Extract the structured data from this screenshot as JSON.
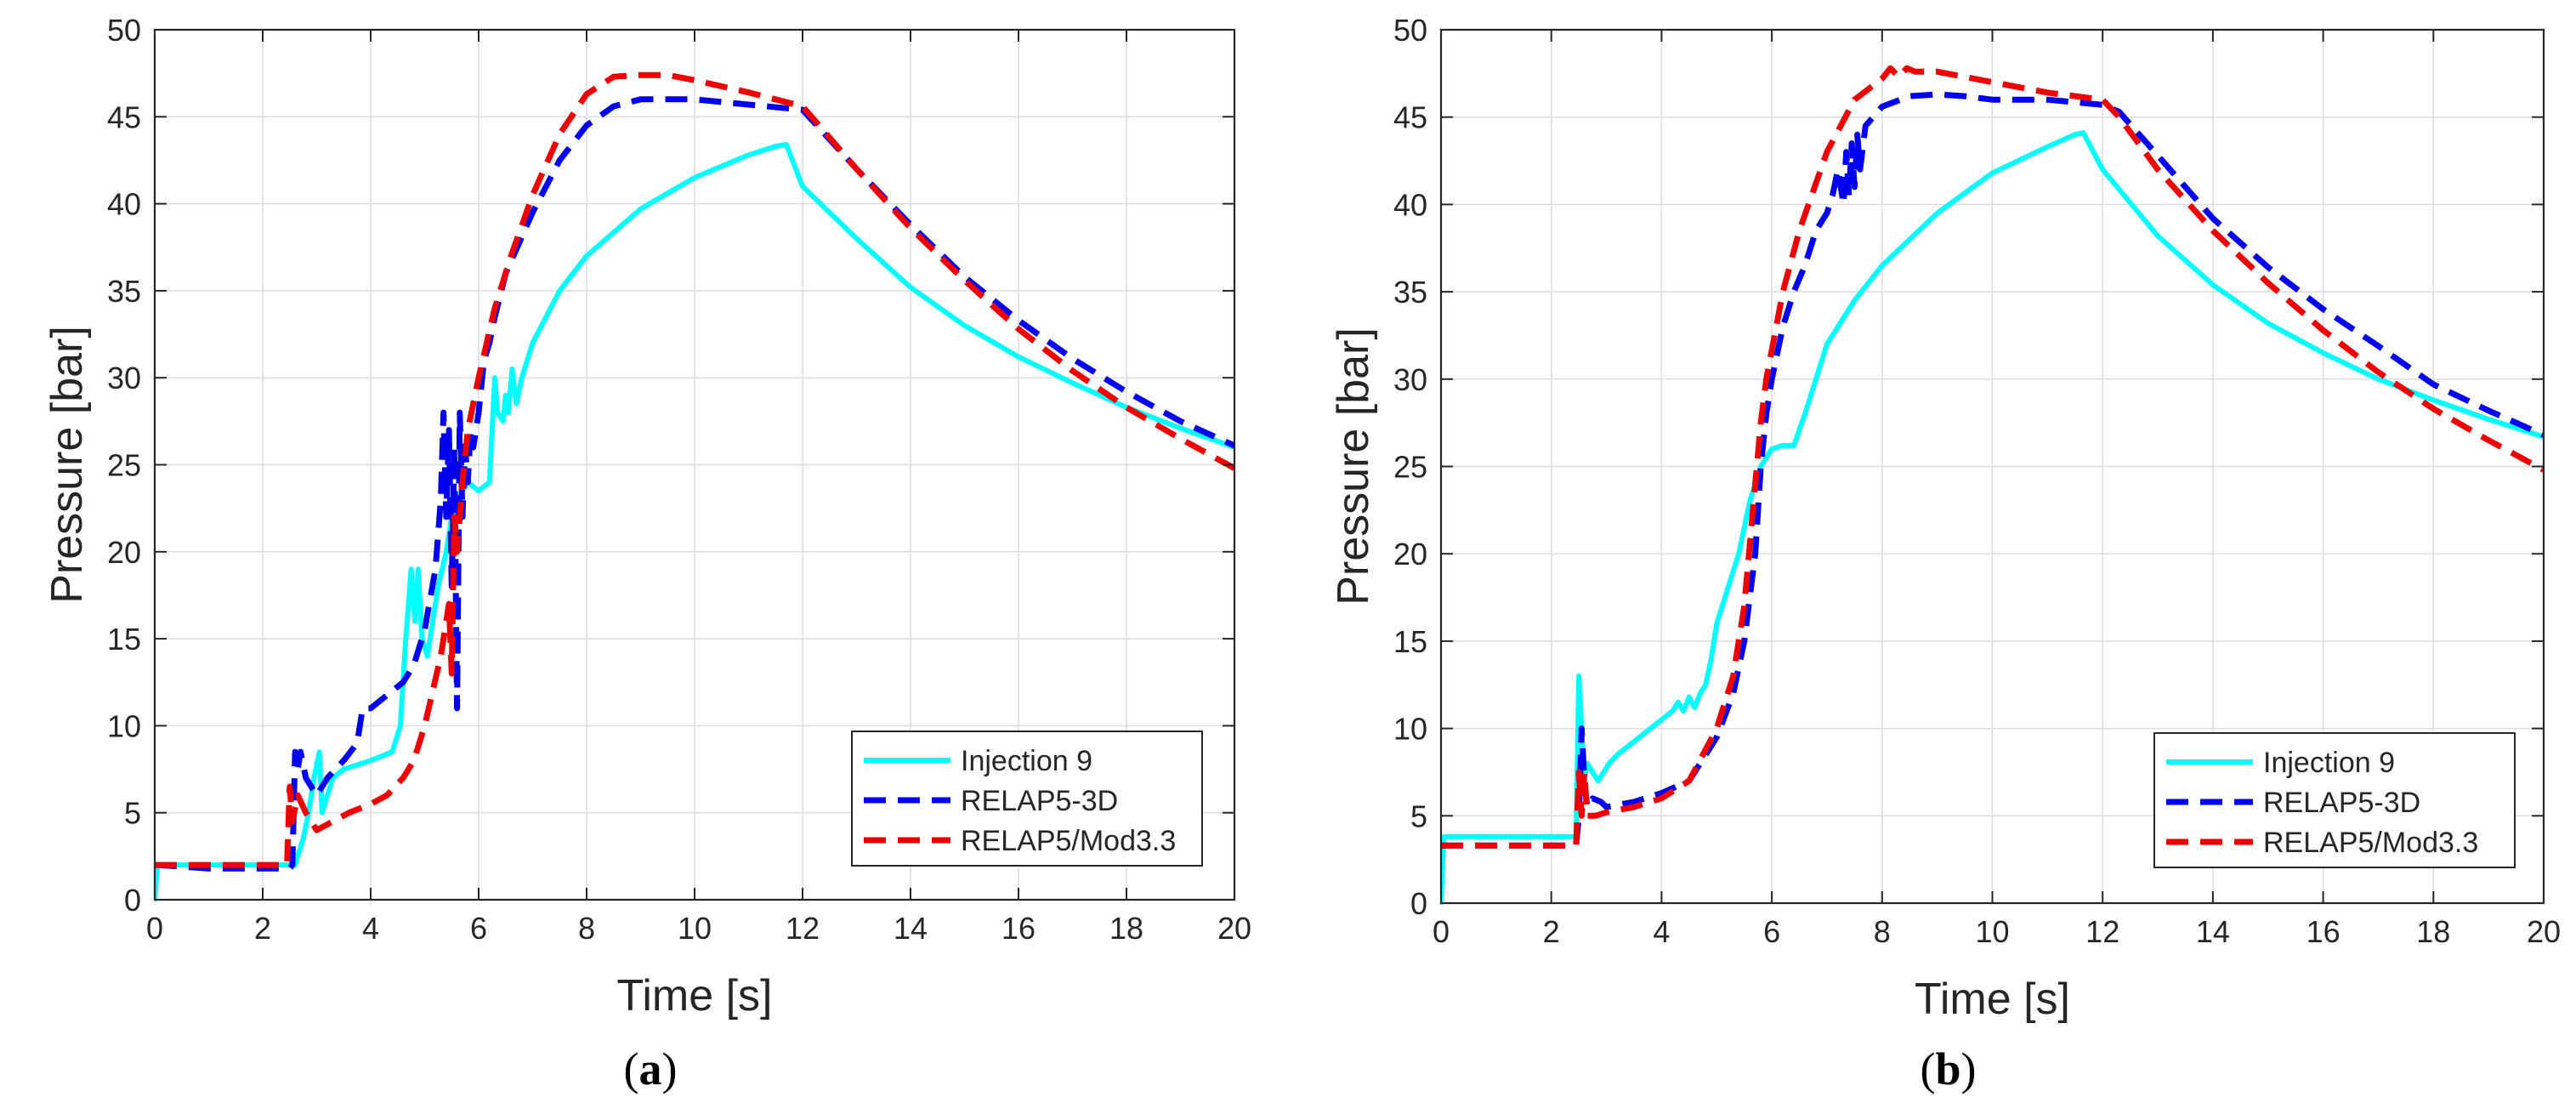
{
  "colors": {
    "injection": "#00FFFF",
    "relap3d": "#0000EE",
    "relap_mod": "#EE0000",
    "grid": "#DCDCDC",
    "axis": "#262626"
  },
  "chart_data": [
    {
      "panel": "a",
      "type": "line",
      "caption": {
        "open": "(",
        "letter": "a",
        "close": ")"
      },
      "xlabel": "Time [s]",
      "ylabel": "Pressure [bar]",
      "xlim": [
        0,
        20
      ],
      "ylim": [
        0,
        50
      ],
      "xticks": [
        0,
        2,
        4,
        6,
        8,
        10,
        12,
        14,
        16,
        18,
        20
      ],
      "yticks": [
        0,
        5,
        10,
        15,
        20,
        25,
        30,
        35,
        40,
        45,
        50
      ],
      "xtick_labels": [
        "0",
        "2",
        "4",
        "6",
        "8",
        "10",
        "12",
        "14",
        "16",
        "18",
        "20"
      ],
      "ytick_labels": [
        "0",
        "5",
        "10",
        "15",
        "20",
        "25",
        "30",
        "35",
        "40",
        "45",
        "50"
      ],
      "grid": true,
      "legend_position": "bottom-right",
      "series": [
        {
          "name": "Injection 9",
          "style": "solid",
          "color_key": "injection",
          "x": [
            0,
            0.05,
            0.1,
            1,
            2,
            2.6,
            2.75,
            2.85,
            2.95,
            3.05,
            3.1,
            3.2,
            3.3,
            3.5,
            4,
            4.4,
            4.55,
            4.65,
            4.7,
            4.75,
            4.82,
            4.88,
            4.95,
            5.05,
            5.15,
            5.25,
            5.4,
            5.5,
            5.6,
            5.7,
            5.8,
            6.0,
            6.2,
            6.3,
            6.35,
            6.45,
            6.5,
            6.55,
            6.62,
            6.7,
            6.8,
            7,
            7.5,
            8,
            9,
            10,
            11,
            11.5,
            11.7,
            12,
            13,
            14,
            15,
            16,
            17,
            18,
            19,
            20
          ],
          "y": [
            0,
            2,
            2,
            2,
            2,
            2,
            3.5,
            5,
            7,
            8.5,
            5,
            6,
            7,
            7.5,
            8,
            8.5,
            10,
            15,
            17,
            19,
            16,
            19,
            15,
            14,
            16,
            18,
            20,
            22,
            23,
            23.5,
            24,
            23.5,
            24,
            30,
            28,
            27.5,
            29,
            28,
            30.5,
            28.5,
            30,
            32,
            35,
            37,
            39.7,
            41.5,
            42.8,
            43.3,
            43.4,
            41,
            38,
            35.2,
            33,
            31.2,
            29.7,
            28.3,
            27.1,
            26
          ]
        },
        {
          "name": "RELAP5-3D",
          "style": "dashed",
          "color_key": "relap3d",
          "x": [
            0,
            0.05,
            1,
            2,
            2.5,
            2.55,
            2.6,
            2.65,
            2.7,
            2.8,
            3.0,
            3.2,
            3.5,
            3.75,
            3.85,
            4,
            4.2,
            4.4,
            4.6,
            4.8,
            5.0,
            5.2,
            5.3,
            5.35,
            5.4,
            5.45,
            5.5,
            5.55,
            5.6,
            5.65,
            5.7,
            5.75,
            5.8,
            5.85,
            5.9,
            6.0,
            6.1,
            6.2,
            6.3,
            6.5,
            7,
            7.5,
            8,
            8.5,
            9,
            10,
            11,
            12,
            13,
            14,
            15,
            16,
            17,
            18,
            19,
            20
          ],
          "y": [
            2,
            2,
            1.8,
            1.8,
            1.8,
            2,
            8.5,
            7.5,
            8.5,
            7,
            6,
            7,
            8,
            9,
            11,
            11,
            11.5,
            12,
            12.5,
            13.5,
            15.5,
            19,
            23,
            28,
            22,
            27,
            18,
            26,
            11,
            28,
            22,
            26,
            24,
            27,
            26,
            28,
            31,
            32,
            33.5,
            36,
            39.5,
            42.5,
            44.5,
            45.6,
            46,
            46,
            45.7,
            45.4,
            42,
            38.8,
            35.8,
            33.3,
            31.1,
            29.2,
            27.5,
            26.1
          ]
        },
        {
          "name": "RELAP5/Mod3.3",
          "style": "dashed",
          "color_key": "relap_mod",
          "x": [
            0,
            0.05,
            1,
            2,
            2.45,
            2.5,
            2.55,
            2.65,
            2.8,
            3,
            3.3,
            3.6,
            4,
            4.3,
            4.6,
            4.8,
            5.0,
            5.15,
            5.3,
            5.45,
            5.5,
            5.55,
            5.6,
            5.7,
            5.8,
            6.0,
            6.3,
            6.6,
            7,
            7.5,
            8,
            8.5,
            9,
            9.5,
            10,
            11,
            12,
            13,
            14,
            15,
            16,
            17,
            18,
            19,
            20
          ],
          "y": [
            2,
            2,
            2,
            2,
            2,
            6.5,
            4.5,
            6,
            5,
            4,
            4.5,
            5,
            5.5,
            6,
            7,
            8,
            10,
            12,
            14,
            17,
            13,
            22,
            20,
            24,
            27,
            30,
            34,
            37,
            40.5,
            44,
            46.3,
            47.3,
            47.4,
            47.4,
            47.1,
            46.4,
            45.6,
            42,
            38.6,
            35.6,
            32.8,
            30.4,
            28.3,
            26.5,
            24.8
          ]
        }
      ]
    },
    {
      "panel": "b",
      "type": "line",
      "caption": {
        "open": "(",
        "letter": "b",
        "close": ")"
      },
      "xlabel": "Time [s]",
      "ylabel": "Pressure [bar]",
      "xlim": [
        0,
        20
      ],
      "ylim": [
        0,
        50
      ],
      "xticks": [
        0,
        2,
        4,
        6,
        8,
        10,
        12,
        14,
        16,
        18,
        20
      ],
      "yticks": [
        0,
        5,
        10,
        15,
        20,
        25,
        30,
        35,
        40,
        45,
        50
      ],
      "xtick_labels": [
        "0",
        "2",
        "4",
        "6",
        "8",
        "10",
        "12",
        "14",
        "16",
        "18",
        "20"
      ],
      "ytick_labels": [
        "0",
        "5",
        "10",
        "15",
        "20",
        "25",
        "30",
        "35",
        "40",
        "45",
        "50"
      ],
      "grid": true,
      "legend_position": "bottom-right",
      "series": [
        {
          "name": "Injection 9",
          "style": "solid",
          "color_key": "injection",
          "x": [
            0,
            0.05,
            0.1,
            1,
            2,
            2.45,
            2.5,
            2.55,
            2.6,
            2.65,
            2.75,
            2.85,
            2.95,
            3.05,
            3.2,
            3.4,
            3.6,
            3.8,
            4.0,
            4.2,
            4.3,
            4.4,
            4.5,
            4.6,
            4.7,
            4.8,
            4.9,
            5.0,
            5.2,
            5.4,
            5.6,
            5.8,
            6.0,
            6.2,
            6.4,
            6.6,
            6.8,
            7,
            7.5,
            8,
            9,
            10,
            11,
            11.5,
            11.65,
            12,
            13,
            14,
            15,
            16,
            17,
            18,
            19,
            20
          ],
          "y": [
            0,
            3.8,
            3.8,
            3.8,
            3.8,
            3.8,
            13,
            10,
            7,
            8,
            7.5,
            7,
            7.5,
            8,
            8.5,
            9,
            9.5,
            10,
            10.5,
            11,
            11.5,
            11,
            11.8,
            11.2,
            12,
            12.5,
            14,
            16,
            18,
            20,
            23,
            25,
            26,
            26.2,
            26.2,
            28,
            30,
            32,
            34.5,
            36.5,
            39.5,
            41.8,
            43.3,
            44,
            44.1,
            42,
            38.2,
            35.4,
            33.2,
            31.5,
            30,
            28.8,
            27.7,
            26.7
          ]
        },
        {
          "name": "RELAP5-3D",
          "style": "dashed",
          "color_key": "relap3d",
          "x": [
            0,
            0.05,
            1,
            2,
            2.45,
            2.5,
            2.55,
            2.6,
            2.65,
            2.75,
            2.9,
            3.0,
            3.5,
            4,
            4.5,
            5,
            5.3,
            5.5,
            5.7,
            5.8,
            5.9,
            6.0,
            6.2,
            6.4,
            6.6,
            6.8,
            7.0,
            7.1,
            7.2,
            7.3,
            7.35,
            7.4,
            7.45,
            7.5,
            7.55,
            7.6,
            7.7,
            8,
            8.5,
            9,
            9.5,
            10,
            11,
            12,
            12.3,
            13,
            14,
            15,
            16,
            17,
            18,
            19,
            20
          ],
          "y": [
            3.3,
            3.3,
            3.3,
            3.3,
            3.3,
            5,
            10,
            7,
            5.5,
            6,
            5.8,
            5.5,
            5.8,
            6.3,
            7,
            9.5,
            12,
            15,
            20,
            25,
            28,
            30,
            33,
            35,
            36.5,
            38.5,
            39.5,
            40.5,
            42,
            40,
            43,
            40.5,
            43.5,
            41,
            44,
            42,
            44.5,
            45.6,
            46.2,
            46.3,
            46.2,
            46,
            46,
            45.7,
            45.3,
            42.8,
            39.2,
            36.4,
            34,
            31.9,
            29.7,
            28.2,
            26.8
          ]
        },
        {
          "name": "RELAP5/Mod3.3",
          "style": "dashed",
          "color_key": "relap_mod",
          "x": [
            0,
            0.05,
            1,
            2,
            2.45,
            2.5,
            2.55,
            2.6,
            2.65,
            2.8,
            3,
            3.5,
            4,
            4.5,
            5,
            5.3,
            5.5,
            5.7,
            5.8,
            5.9,
            6.2,
            6.5,
            7,
            7.5,
            8,
            8.15,
            8.3,
            8.45,
            8.6,
            9,
            9.5,
            10,
            11,
            12,
            12.3,
            13,
            14,
            15,
            16,
            17,
            18,
            19,
            20
          ],
          "y": [
            3.3,
            3.3,
            3.3,
            3.3,
            3.3,
            7.5,
            5,
            7.5,
            5,
            5,
            5.2,
            5.5,
            6,
            7,
            10,
            13,
            17,
            24,
            27.5,
            30,
            35,
            38.5,
            43,
            46,
            47.2,
            47.8,
            47.3,
            47.8,
            47.6,
            47.6,
            47.3,
            47,
            46.4,
            46,
            45,
            42,
            38.5,
            35.5,
            32.8,
            30.4,
            28.3,
            26.5,
            24.8
          ]
        }
      ]
    }
  ]
}
